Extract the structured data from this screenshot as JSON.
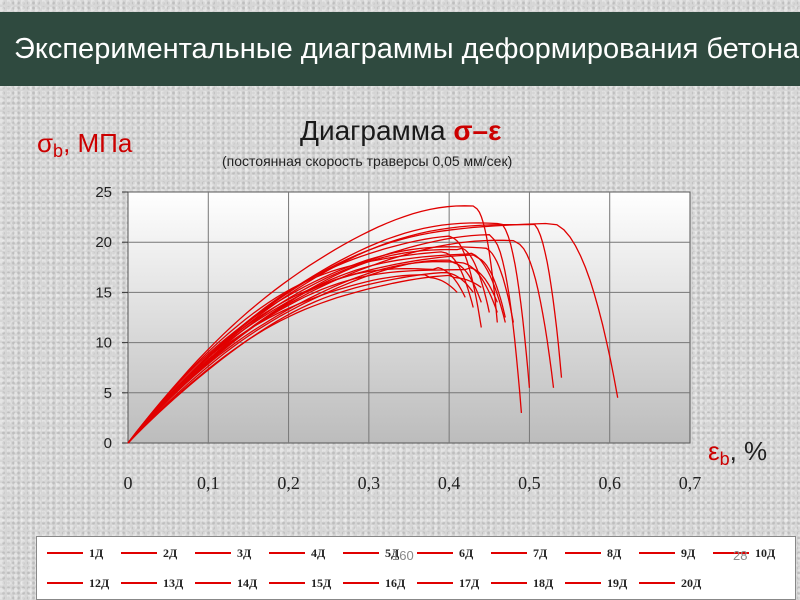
{
  "header": {
    "title": "Экспериментальные диаграммы деформирования бетона"
  },
  "y_axis_label": {
    "symbol": "σ",
    "sub": "b",
    "unit": ", МПа"
  },
  "x_axis_label": {
    "symbol": "ε",
    "sub": "b",
    "unit": ", %"
  },
  "slide_numbers": {
    "left": "160",
    "right": "28"
  },
  "colors": {
    "header_bg": "#2f4a3f",
    "curve": "#e00000",
    "plot_bg_top": "#ffffff",
    "plot_bg_bottom": "#bcbcbc"
  },
  "chart_data": {
    "type": "line",
    "title": "Диаграмма",
    "title_symbols": "σ–ε",
    "subtitle": "(постоянная скорость траверсы 0,05 мм/сек)",
    "xlim": [
      0,
      0.7
    ],
    "ylim": [
      0,
      25
    ],
    "x_ticks": [
      "0",
      "0,1",
      "0,2",
      "0,3",
      "0,4",
      "0,5",
      "0,6",
      "0,7"
    ],
    "y_ticks": [
      "0",
      "5",
      "10",
      "15",
      "20",
      "25"
    ],
    "grid": true,
    "legend_position": "bottom",
    "series": [
      {
        "name": "1Д",
        "peak_x": 0.43,
        "peak_y": 23.5,
        "end_x": 0.46,
        "end_y": 12.0
      },
      {
        "name": "2Д",
        "peak_x": 0.46,
        "peak_y": 22.0,
        "end_x": 0.5,
        "end_y": 5.5
      },
      {
        "name": "3Д",
        "peak_x": 0.5,
        "peak_y": 22.0,
        "end_x": 0.54,
        "end_y": 6.5
      },
      {
        "name": "4Д",
        "peak_x": 0.52,
        "peak_y": 22.0,
        "end_x": 0.61,
        "end_y": 4.5
      },
      {
        "name": "5Д",
        "peak_x": 0.4,
        "peak_y": 20.5,
        "end_x": 0.44,
        "end_y": 11.5
      },
      {
        "name": "6Д",
        "peak_x": 0.45,
        "peak_y": 20.5,
        "end_x": 0.49,
        "end_y": 3.0
      },
      {
        "name": "7Д",
        "peak_x": 0.48,
        "peak_y": 20.0,
        "end_x": 0.53,
        "end_y": 5.5
      },
      {
        "name": "8Д",
        "peak_x": 0.44,
        "peak_y": 19.5,
        "end_x": 0.48,
        "end_y": 12.0
      },
      {
        "name": "9Д",
        "peak_x": 0.41,
        "peak_y": 19.5,
        "end_x": 0.45,
        "end_y": 13.0
      },
      {
        "name": "10Д",
        "peak_x": 0.42,
        "peak_y": 19.0,
        "end_x": 0.47,
        "end_y": 12.0
      },
      {
        "name": "12Д",
        "peak_x": 0.39,
        "peak_y": 19.0,
        "end_x": 0.43,
        "end_y": 13.5
      },
      {
        "name": "13Д",
        "peak_x": 0.43,
        "peak_y": 18.5,
        "end_x": 0.47,
        "end_y": 12.5
      },
      {
        "name": "14Д",
        "peak_x": 0.4,
        "peak_y": 18.0,
        "end_x": 0.44,
        "end_y": 14.0
      },
      {
        "name": "15Д",
        "peak_x": 0.41,
        "peak_y": 18.0,
        "end_x": 0.46,
        "end_y": 13.0
      },
      {
        "name": "16Д",
        "peak_x": 0.38,
        "peak_y": 17.5,
        "end_x": 0.42,
        "end_y": 14.5
      },
      {
        "name": "17Д",
        "peak_x": 0.42,
        "peak_y": 17.5,
        "end_x": 0.46,
        "end_y": 14.0
      },
      {
        "name": "18Д",
        "peak_x": 0.39,
        "peak_y": 17.0,
        "end_x": 0.43,
        "end_y": 15.0
      },
      {
        "name": "19Д",
        "peak_x": 0.4,
        "peak_y": 16.5,
        "end_x": 0.44,
        "end_y": 15.5
      },
      {
        "name": "20Д",
        "peak_x": 0.37,
        "peak_y": 16.5,
        "end_x": 0.41,
        "end_y": 15.0
      }
    ]
  }
}
